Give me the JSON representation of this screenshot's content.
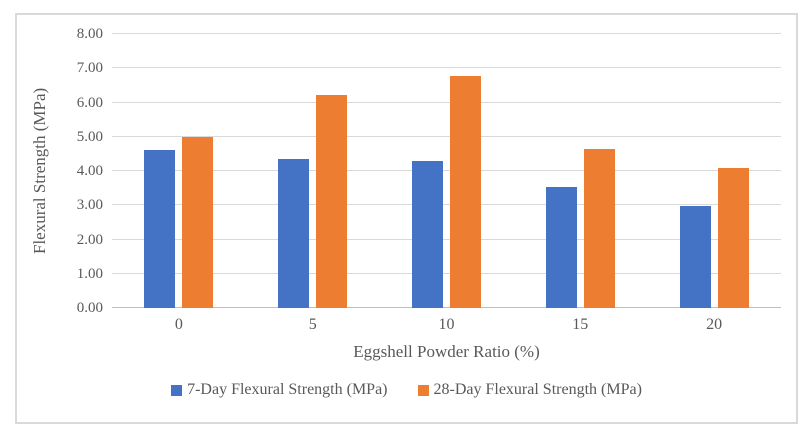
{
  "chart_data": {
    "type": "bar",
    "title": "",
    "categories": [
      "0",
      "5",
      "10",
      "15",
      "20"
    ],
    "series": [
      {
        "name": "7-Day Flexural Strength (MPa)",
        "color": "#4472C4",
        "values": [
          4.62,
          4.36,
          4.28,
          3.52,
          2.98
        ]
      },
      {
        "name": "28-Day Flexural Strength (MPa)",
        "color": "#ED7D31",
        "values": [
          5.0,
          6.21,
          6.78,
          4.64,
          4.08
        ]
      }
    ],
    "xlabel": "Eggshell Powder Ratio (%)",
    "ylabel": "Flexural Strength (MPa)",
    "ylim": [
      0,
      8
    ],
    "ytick_step": 1,
    "ytick_labels": [
      "0.00",
      "1.00",
      "2.00",
      "3.00",
      "4.00",
      "5.00",
      "6.00",
      "7.00",
      "8.00"
    ],
    "grid": true,
    "legend_position": "bottom"
  },
  "colors": {
    "series_blue": "#4472C4",
    "series_orange": "#ED7D31",
    "gridline": "#D9D9D9",
    "axis_line": "#BFBFBF",
    "text": "#595959",
    "chart_border": "#D9D9D9",
    "background": "#FFFFFF"
  }
}
